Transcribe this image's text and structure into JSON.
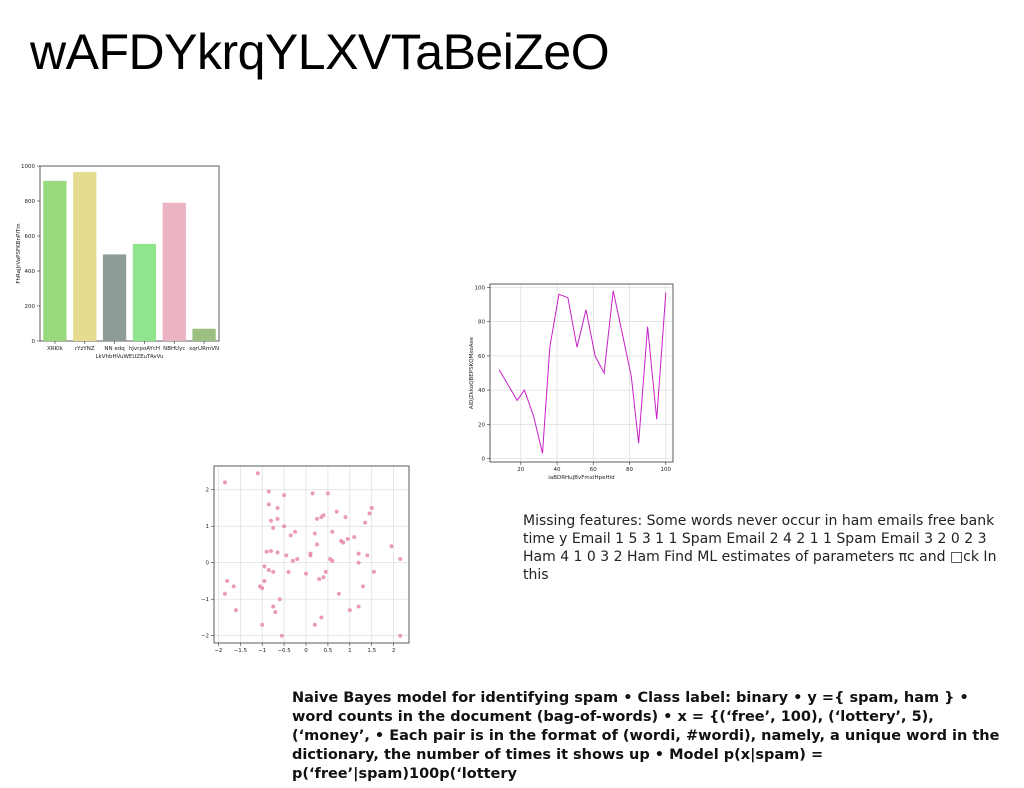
{
  "slide": {
    "title": "wAFDYkrqYLXVTaBeiZeO",
    "body_text": "Missing features: Some words never occur in ham emails free bank time y Email 1 5 3 1 1 Spam Email 2 4 2 1 1 Spam Email 3 2 0 2 3 Ham 4 1 0 3 2 Ham Find ML estimates of parameters πc and □ck In this",
    "bold_text": "Naive Bayes model for identifying spam • Class label: binary • y ={ spam, ham } • word counts in the document (bag-of-words) • x = {(‘free’, 100), (‘lottery’, 5), (‘money’, • Each pair is in the format of (wordi, #wordi), namely, a unique word in the dictionary, the number of times it shows up • Model p(x|spam) = p(‘free’|spam)100p(‘lottery"
  },
  "chart_data": [
    {
      "type": "bar",
      "categories": [
        "XRKlk",
        "rYzYNZ",
        "NN edq",
        "hJvrpoAYcH",
        "NBHUyc",
        "xqrURmVN"
      ],
      "values": [
        915,
        965,
        495,
        555,
        790,
        70
      ],
      "colors": [
        "#98d97e",
        "#e5dc90",
        "#8e9c98",
        "#8fe58c",
        "#ebb4c2",
        "#9cc080"
      ],
      "xlabel": "LkVhbHVuWEUZEuTAvVu",
      "ylabel": "FhRajJrVaPSFKBnPITm",
      "ylim": [
        0,
        1000
      ],
      "yticks": [
        0,
        200,
        400,
        600,
        800,
        1000
      ]
    },
    {
      "type": "line",
      "x": [
        8,
        13,
        18,
        22,
        27,
        32,
        36,
        41,
        46,
        51,
        56,
        61,
        66,
        71,
        76,
        81,
        85,
        90,
        95,
        100
      ],
      "series": [
        {
          "values": [
            52,
            43,
            34,
            40,
            25,
            3,
            65,
            96,
            94,
            65,
            87,
            60,
            50,
            98,
            73,
            48,
            9,
            77,
            23,
            97
          ]
        }
      ],
      "color": "#c81fc8",
      "xlabel": "iaBDRHujBvFmxlHpeHld",
      "ylabel": "AlDjZkkoQBEPSKQMxoAee",
      "xlim": [
        3,
        104
      ],
      "ylim": [
        -2,
        102
      ],
      "xticks": [
        20,
        40,
        60,
        80,
        100
      ],
      "yticks": [
        0,
        20,
        40,
        60,
        80,
        100
      ],
      "grid": true
    },
    {
      "type": "scatter",
      "color": "#e889a8",
      "xlim": [
        -2.1,
        2.35
      ],
      "ylim": [
        -2.2,
        2.65
      ],
      "xticks": [
        -2.0,
        -1.5,
        -1.0,
        -0.5,
        0.0,
        0.5,
        1.0,
        1.5,
        2.0
      ],
      "yticks": [
        -2,
        -1,
        0,
        1,
        2
      ],
      "grid": true,
      "points": [
        [
          -1.85,
          2.2
        ],
        [
          -1.1,
          2.45
        ],
        [
          -0.85,
          1.95
        ],
        [
          -0.5,
          1.85
        ],
        [
          0.15,
          1.9
        ],
        [
          0.5,
          1.9
        ],
        [
          -0.85,
          1.6
        ],
        [
          -0.65,
          1.5
        ],
        [
          -0.8,
          1.15
        ],
        [
          -0.65,
          1.2
        ],
        [
          -0.5,
          1.0
        ],
        [
          -0.75,
          0.95
        ],
        [
          -0.9,
          0.3
        ],
        [
          -0.8,
          0.32
        ],
        [
          -0.65,
          0.28
        ],
        [
          -0.45,
          0.2
        ],
        [
          -0.35,
          0.75
        ],
        [
          -0.25,
          0.85
        ],
        [
          -0.95,
          -0.1
        ],
        [
          -0.85,
          -0.2
        ],
        [
          -0.75,
          -0.25
        ],
        [
          -0.4,
          -0.25
        ],
        [
          -0.3,
          0.05
        ],
        [
          -0.2,
          0.1
        ],
        [
          -0.95,
          -0.5
        ],
        [
          -1.05,
          -0.65
        ],
        [
          -1.0,
          -0.7
        ],
        [
          -1.65,
          -0.65
        ],
        [
          -1.8,
          -0.5
        ],
        [
          -1.85,
          -0.85
        ],
        [
          -1.6,
          -1.3
        ],
        [
          -0.75,
          -1.2
        ],
        [
          -0.7,
          -1.35
        ],
        [
          -0.6,
          -1.0
        ],
        [
          -0.55,
          -2.0
        ],
        [
          -1.0,
          -1.7
        ],
        [
          0.0,
          -0.3
        ],
        [
          0.1,
          0.2
        ],
        [
          0.1,
          0.25
        ],
        [
          0.2,
          0.8
        ],
        [
          0.25,
          1.2
        ],
        [
          0.35,
          1.25
        ],
        [
          0.4,
          1.3
        ],
        [
          0.25,
          0.5
        ],
        [
          0.3,
          -0.45
        ],
        [
          0.4,
          -0.4
        ],
        [
          0.45,
          -0.25
        ],
        [
          0.55,
          0.1
        ],
        [
          0.6,
          0.05
        ],
        [
          0.8,
          0.6
        ],
        [
          0.85,
          0.55
        ],
        [
          0.95,
          0.65
        ],
        [
          0.9,
          1.25
        ],
        [
          0.7,
          1.4
        ],
        [
          0.6,
          0.85
        ],
        [
          1.1,
          0.7
        ],
        [
          1.2,
          0.25
        ],
        [
          1.2,
          0.0
        ],
        [
          1.4,
          0.2
        ],
        [
          1.35,
          1.1
        ],
        [
          1.45,
          1.35
        ],
        [
          1.5,
          1.5
        ],
        [
          1.55,
          -0.25
        ],
        [
          1.3,
          -0.65
        ],
        [
          1.0,
          -1.3
        ],
        [
          1.2,
          -1.2
        ],
        [
          0.35,
          -1.5
        ],
        [
          0.2,
          -1.7
        ],
        [
          0.75,
          -0.85
        ],
        [
          1.95,
          0.45
        ],
        [
          2.15,
          0.1
        ],
        [
          2.15,
          -2.0
        ]
      ]
    }
  ]
}
